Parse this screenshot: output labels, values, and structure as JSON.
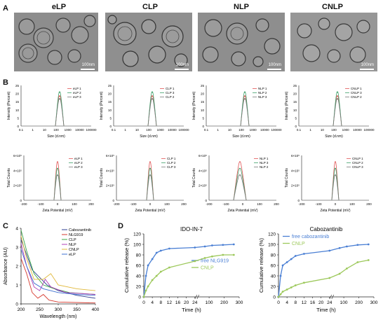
{
  "panels": {
    "a": "A",
    "b": "B",
    "c": "C",
    "d": "D"
  },
  "tem": {
    "images": [
      {
        "title": "eLP",
        "scale": "100nm"
      },
      {
        "title": "CLP",
        "scale": "100nm"
      },
      {
        "title": "NLP",
        "scale": "100nm"
      },
      {
        "title": "CNLP",
        "scale": "100nm"
      }
    ]
  },
  "dls": {
    "size": {
      "xlabel": "Size (d.nm)",
      "ylabel": "Intensity (Percent)",
      "xticks": [
        "0.1",
        "1",
        "10",
        "100",
        "1000",
        "10000",
        "100000"
      ],
      "yticks": [
        "0",
        "5",
        "10",
        "15",
        "20",
        "25"
      ],
      "plots": [
        {
          "legend": [
            "eLP 1",
            "eLP 2",
            "eLP 3"
          ]
        },
        {
          "legend": [
            "CLP 1",
            "CLP 3",
            "CLP 2"
          ]
        },
        {
          "legend": [
            "NLP 1",
            "NLP 2",
            "NLP 3"
          ]
        },
        {
          "legend": [
            "CNLP 1",
            "CNLP 3",
            "CNLP 2"
          ]
        }
      ]
    },
    "zeta": {
      "xlabel": "Zeta Potential (mV)",
      "ylabel": "Total Counts",
      "xticks": [
        "-200",
        "-100",
        "0",
        "100",
        "200"
      ],
      "plots": [
        {
          "legend": [
            "eLP 1",
            "eLP 2",
            "eLP 3"
          ],
          "yticks": [
            "0",
            "2×10⁵",
            "4×10⁵",
            "6×10⁵"
          ]
        },
        {
          "legend": [
            "CLP 1",
            "CLP 2",
            "CLP 3"
          ],
          "yticks": [
            "0",
            "2×10⁵",
            "4×10⁵",
            "6×10⁵"
          ]
        },
        {
          "legend": [
            "NLP 1",
            "NLP 3",
            "NLP 2"
          ],
          "yticks": [
            "0",
            "2×10⁵",
            "4×10⁵",
            "6×10⁵"
          ]
        },
        {
          "legend": [
            "CNLP 1",
            "CNLP 2",
            "CNLP 3"
          ],
          "yticks": [
            "0",
            "2×10⁵",
            "4×10⁵",
            "6×10⁵"
          ]
        }
      ]
    }
  },
  "chart_data": [
    {
      "type": "line",
      "panel": "C",
      "xlabel": "Wavelength (nm)",
      "ylabel": "Absorbance (AU)",
      "xticks": [
        "200",
        "250",
        "300",
        "350",
        "400"
      ],
      "yticks": [
        "0",
        "1",
        "2",
        "3",
        "4"
      ],
      "xlim": [
        200,
        400
      ],
      "ylim": [
        0,
        4
      ],
      "legend": [
        "Cabozantinib",
        "NLG919",
        "CLP",
        "NLP",
        "CNLP",
        "eLP"
      ],
      "colors": {
        "Cabozantinib": "#2c3e8f",
        "NLG919": "#d63a2f",
        "CLP": "#39a845",
        "NLP": "#b03fb8",
        "CNLP": "#e0b83a",
        "eLP": "#3d6fd0"
      }
    },
    {
      "type": "line",
      "panel": "D",
      "title": "IDO-IN-7",
      "xlabel": "Time (h)",
      "ylabel": "Cumulative release (%)",
      "yticks": [
        "0",
        "20",
        "40",
        "60",
        "80",
        "100",
        "120"
      ],
      "xticks": [
        "0",
        "4",
        "8",
        "12",
        "16",
        "20",
        "24",
        "100",
        "200",
        "300"
      ],
      "ylim": [
        0,
        120
      ],
      "series": [
        {
          "name": "free NLG919",
          "color": "#4a7fd4",
          "x": [
            0,
            1,
            2,
            4,
            6,
            8,
            12,
            24,
            72,
            120,
            192,
            264
          ],
          "y": [
            0,
            40,
            60,
            72,
            84,
            88,
            92,
            94,
            96,
            98,
            99,
            100
          ]
        },
        {
          "name": "CNLP",
          "color": "#9cc85a",
          "x": [
            0,
            1,
            2,
            4,
            6,
            8,
            12,
            24,
            72,
            120,
            192,
            264
          ],
          "y": [
            0,
            12,
            20,
            32,
            40,
            48,
            56,
            68,
            74,
            77,
            80,
            80
          ]
        }
      ]
    },
    {
      "type": "line",
      "panel": "D",
      "title": "Cabozantinib",
      "xlabel": "Time (h)",
      "ylabel": "Cumulative release (%)",
      "yticks": [
        "0",
        "20",
        "40",
        "60",
        "80",
        "100",
        "120"
      ],
      "xticks": [
        "0",
        "4",
        "8",
        "12",
        "16",
        "20",
        "24",
        "100",
        "200",
        "300"
      ],
      "ylim": [
        0,
        120
      ],
      "series": [
        {
          "name": "free cabozantinib",
          "color": "#4a7fd4",
          "x": [
            0,
            1,
            2,
            4,
            6,
            8,
            12,
            24,
            72,
            120,
            192,
            264
          ],
          "y": [
            0,
            40,
            60,
            66,
            72,
            78,
            82,
            88,
            93,
            96,
            99,
            100
          ]
        },
        {
          "name": "CNLP",
          "color": "#9cc85a",
          "x": [
            0,
            1,
            2,
            4,
            6,
            8,
            12,
            24,
            72,
            120,
            192,
            264
          ],
          "y": [
            0,
            5,
            10,
            14,
            18,
            22,
            27,
            36,
            44,
            54,
            66,
            70
          ]
        }
      ]
    }
  ]
}
